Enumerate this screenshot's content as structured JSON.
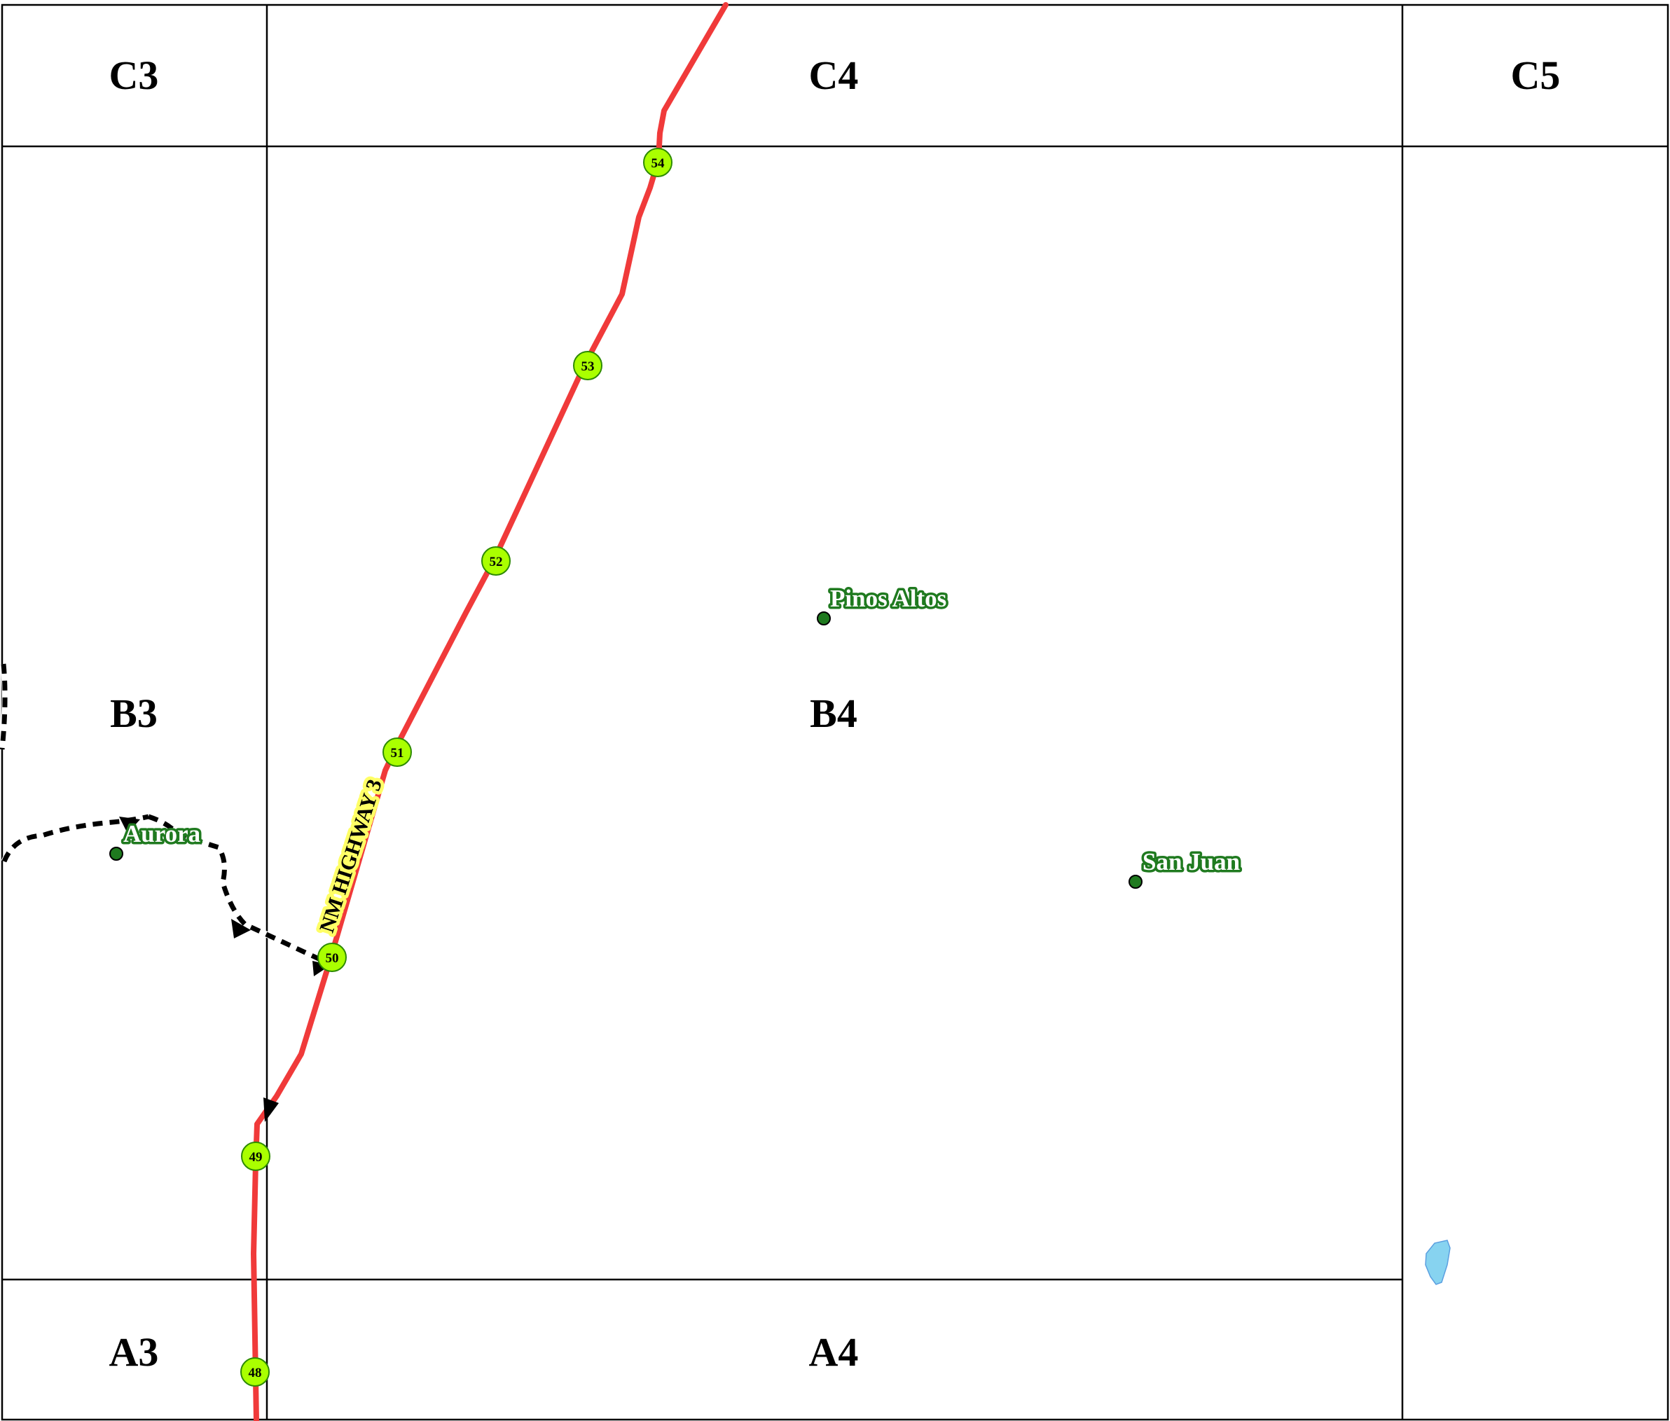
{
  "map": {
    "grid_cells": [
      "C3",
      "C4",
      "C5",
      "B3",
      "B4",
      "A3",
      "A4"
    ],
    "highway": {
      "name": "NM HIGHWAY 3",
      "color": "#f03a3a",
      "mile_markers": [
        "48",
        "49",
        "50",
        "51",
        "52",
        "53",
        "54"
      ],
      "marker_color": "#aaff00"
    },
    "towns": [
      "Pinos Altos",
      "Aurora",
      "San Juan"
    ],
    "town_label_color": "#1f7a1f",
    "water_color": "#87d3f0",
    "trail_style": "dashed-black-arrows"
  }
}
